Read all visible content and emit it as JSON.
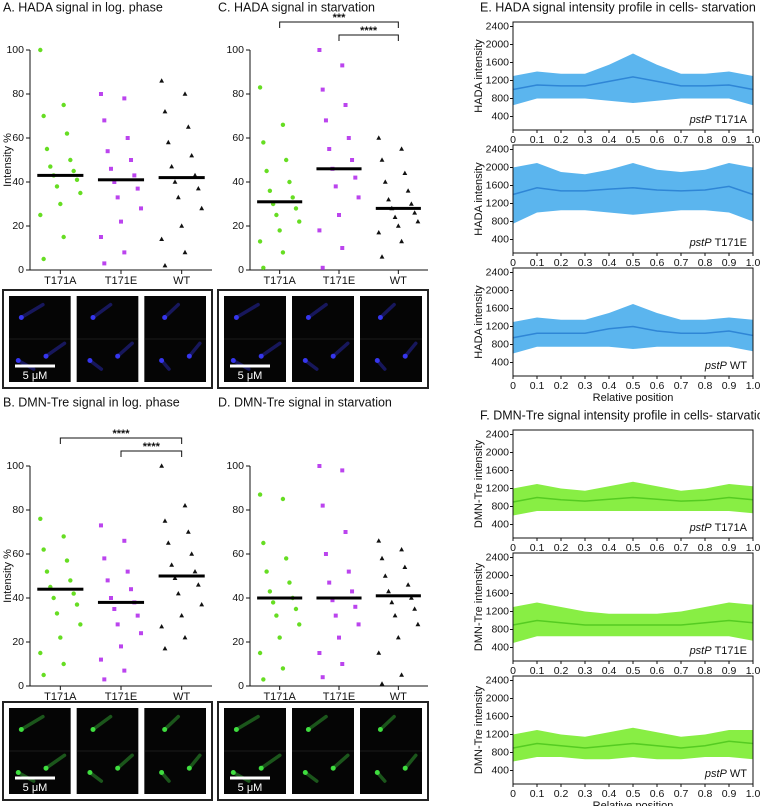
{
  "chart_data": [
    {
      "type": "dotplot",
      "title": "A. HADA signal in log. phase",
      "ylabel": "Intensity %",
      "categories": [
        "T171A",
        "T171E",
        "WT"
      ],
      "ylim": [
        0,
        100
      ],
      "yticks": [
        0,
        20,
        40,
        60,
        80,
        100
      ],
      "groups": [
        {
          "color": "#66dd22",
          "marker": "circle",
          "mean": 43,
          "values": [
            100,
            75,
            70,
            62,
            55,
            50,
            47,
            45,
            43,
            41,
            38,
            35,
            30,
            25,
            15,
            5
          ]
        },
        {
          "color": "#bb44ee",
          "marker": "square",
          "mean": 41,
          "values": [
            80,
            78,
            68,
            60,
            54,
            50,
            46,
            43,
            40,
            37,
            33,
            28,
            22,
            15,
            8,
            3
          ]
        },
        {
          "color": "#111111",
          "marker": "triangle",
          "mean": 42,
          "values": [
            86,
            80,
            72,
            65,
            58,
            52,
            47,
            43,
            40,
            37,
            33,
            28,
            20,
            14,
            8,
            2
          ]
        }
      ],
      "scale_bar_label": "5 μM"
    },
    {
      "type": "dotplot",
      "title": "C. HADA signal in starvation",
      "categories": [
        "T171A",
        "T171E",
        "WT"
      ],
      "ylim": [
        0,
        100
      ],
      "yticks": [
        0,
        20,
        40,
        60,
        80,
        100
      ],
      "groups": [
        {
          "color": "#66dd22",
          "marker": "circle",
          "mean": 31,
          "values": [
            83,
            66,
            58,
            50,
            45,
            40,
            36,
            33,
            30,
            28,
            25,
            22,
            18,
            13,
            8,
            1
          ]
        },
        {
          "color": "#bb44ee",
          "marker": "square",
          "mean": 46,
          "values": [
            100,
            93,
            82,
            75,
            68,
            60,
            55,
            50,
            46,
            42,
            38,
            33,
            25,
            18,
            10,
            1
          ]
        },
        {
          "color": "#111111",
          "marker": "triangle",
          "mean": 28,
          "values": [
            60,
            55,
            50,
            44,
            40,
            36,
            32,
            30,
            28,
            26,
            24,
            22,
            20,
            17,
            13,
            6
          ]
        }
      ],
      "brackets": [
        {
          "label": "***",
          "from": 0,
          "to": 2
        },
        {
          "label": "****",
          "from": 1,
          "to": 2
        }
      ],
      "scale_bar_label": "5 μM"
    },
    {
      "type": "dotplot",
      "title": "B. DMN-Tre signal in log. phase",
      "ylabel": "Intensity %",
      "categories": [
        "T171A",
        "T171E",
        "WT"
      ],
      "ylim": [
        0,
        100
      ],
      "yticks": [
        0,
        20,
        40,
        60,
        80,
        100
      ],
      "groups": [
        {
          "color": "#66dd22",
          "marker": "circle",
          "mean": 44,
          "values": [
            76,
            68,
            62,
            57,
            52,
            48,
            45,
            42,
            40,
            37,
            33,
            28,
            22,
            15,
            10,
            5
          ]
        },
        {
          "color": "#bb44ee",
          "marker": "square",
          "mean": 38,
          "values": [
            73,
            66,
            58,
            52,
            48,
            44,
            40,
            38,
            35,
            32,
            28,
            24,
            18,
            12,
            7,
            3
          ]
        },
        {
          "color": "#111111",
          "marker": "triangle",
          "mean": 50,
          "values": [
            100,
            82,
            75,
            70,
            65,
            60,
            55,
            52,
            49,
            46,
            42,
            37,
            32,
            27,
            22,
            17
          ]
        }
      ],
      "brackets": [
        {
          "label": "****",
          "from": 0,
          "to": 2
        },
        {
          "label": "****",
          "from": 1,
          "to": 2
        }
      ],
      "scale_bar_label": "5 μM"
    },
    {
      "type": "dotplot",
      "title": "D. DMN-Tre signal in starvation",
      "categories": [
        "T171A",
        "T171E",
        "WT"
      ],
      "ylim": [
        0,
        100
      ],
      "yticks": [
        0,
        20,
        40,
        60,
        80,
        100
      ],
      "groups": [
        {
          "color": "#66dd22",
          "marker": "circle",
          "mean": 40,
          "values": [
            87,
            85,
            65,
            58,
            52,
            47,
            43,
            40,
            38,
            35,
            32,
            28,
            22,
            15,
            8,
            3
          ]
        },
        {
          "color": "#bb44ee",
          "marker": "square",
          "mean": 40,
          "values": [
            100,
            98,
            82,
            70,
            60,
            52,
            47,
            43,
            39,
            36,
            32,
            28,
            22,
            15,
            10,
            4
          ]
        },
        {
          "color": "#111111",
          "marker": "triangle",
          "mean": 41,
          "values": [
            66,
            62,
            58,
            54,
            50,
            46,
            43,
            40,
            38,
            35,
            32,
            28,
            22,
            15,
            5,
            1
          ]
        }
      ],
      "scale_bar_label": "5 μM"
    },
    {
      "type": "band",
      "title": "E. HADA signal intensity profile in cells- starvation",
      "ylabel": "HADA intensity",
      "annotation": {
        "gene": "pstP",
        "strain": "T171A"
      },
      "color": "#2f86d6",
      "band_color": "#5bb5ee",
      "x": [
        0,
        0.1,
        0.2,
        0.3,
        0.4,
        0.5,
        0.6,
        0.7,
        0.8,
        0.9,
        1
      ],
      "mean": [
        1000,
        1100,
        1080,
        1080,
        1180,
        1280,
        1180,
        1080,
        1080,
        1100,
        1000
      ],
      "lower": [
        650,
        800,
        800,
        800,
        750,
        700,
        750,
        800,
        800,
        800,
        650
      ],
      "upper": [
        1300,
        1400,
        1350,
        1350,
        1550,
        1800,
        1550,
        1350,
        1350,
        1400,
        1300
      ],
      "xlim": [
        0,
        1
      ],
      "xticks": [
        0,
        0.1,
        0.2,
        0.3,
        0.4,
        0.5,
        0.6,
        0.7,
        0.8,
        0.9,
        {
          "value": 1,
          "label": "1.0"
        }
      ],
      "ylim": [
        100,
        2500
      ],
      "yticks": [
        400,
        800,
        1200,
        1600,
        2000,
        2400
      ]
    },
    {
      "type": "band",
      "ylabel": "HADA intensity",
      "annotation": {
        "gene": "pstP",
        "strain": "T171E"
      },
      "color": "#2f86d6",
      "band_color": "#5bb5ee",
      "x": [
        0,
        0.1,
        0.2,
        0.3,
        0.4,
        0.5,
        0.6,
        0.7,
        0.8,
        0.9,
        1
      ],
      "mean": [
        1400,
        1550,
        1480,
        1480,
        1520,
        1550,
        1500,
        1480,
        1500,
        1580,
        1400
      ],
      "lower": [
        750,
        1000,
        1050,
        1050,
        1000,
        950,
        1000,
        1050,
        1050,
        1000,
        800
      ],
      "upper": [
        2000,
        2100,
        1900,
        1850,
        1950,
        2100,
        1950,
        1900,
        1950,
        2100,
        2000
      ],
      "xlim": [
        0,
        1
      ],
      "xticks": [
        0,
        0.1,
        0.2,
        0.3,
        0.4,
        0.5,
        0.6,
        0.7,
        0.8,
        0.9,
        {
          "value": 1,
          "label": "1.0"
        }
      ],
      "ylim": [
        100,
        2500
      ],
      "yticks": [
        400,
        800,
        1200,
        1600,
        2000,
        2400
      ]
    },
    {
      "type": "band",
      "ylabel": "HADA intensity",
      "xlabel": "Relative position",
      "annotation": {
        "gene": "pstP",
        "strain": "WT"
      },
      "color": "#2f86d6",
      "band_color": "#5bb5ee",
      "x": [
        0,
        0.1,
        0.2,
        0.3,
        0.4,
        0.5,
        0.6,
        0.7,
        0.8,
        0.9,
        1
      ],
      "mean": [
        950,
        1050,
        1050,
        1050,
        1150,
        1200,
        1100,
        1050,
        1050,
        1100,
        1000
      ],
      "lower": [
        600,
        750,
        750,
        750,
        750,
        700,
        750,
        750,
        750,
        750,
        650
      ],
      "upper": [
        1300,
        1400,
        1350,
        1350,
        1500,
        1700,
        1500,
        1350,
        1350,
        1400,
        1350
      ],
      "xlim": [
        0,
        1
      ],
      "xticks": [
        0,
        0.1,
        0.2,
        0.3,
        0.4,
        0.5,
        0.6,
        0.7,
        0.8,
        0.9,
        {
          "value": 1,
          "label": "1.0"
        }
      ],
      "ylim": [
        100,
        2500
      ],
      "yticks": [
        400,
        800,
        1200,
        1600,
        2000,
        2400
      ]
    },
    {
      "type": "band",
      "title": "F. DMN-Tre signal intensity profile in cells- starvation",
      "ylabel": "DMN-Tre intensity",
      "annotation": {
        "gene": "pstP",
        "strain": "T171A"
      },
      "color": "#55cc22",
      "band_color": "#88ee44",
      "x": [
        0,
        0.1,
        0.2,
        0.3,
        0.4,
        0.5,
        0.6,
        0.7,
        0.8,
        0.9,
        1
      ],
      "mean": [
        900,
        1000,
        950,
        920,
        960,
        1000,
        960,
        920,
        940,
        1000,
        950
      ],
      "lower": [
        600,
        700,
        700,
        700,
        700,
        700,
        700,
        700,
        700,
        700,
        650
      ],
      "upper": [
        1200,
        1300,
        1200,
        1150,
        1250,
        1350,
        1250,
        1150,
        1200,
        1300,
        1250
      ],
      "xlim": [
        0,
        1
      ],
      "xticks": [
        0,
        0.1,
        0.2,
        0.3,
        0.4,
        0.5,
        0.6,
        0.7,
        0.8,
        0.9,
        {
          "value": 1,
          "label": "1.0"
        }
      ],
      "ylim": [
        100,
        2500
      ],
      "yticks": [
        400,
        800,
        1200,
        1600,
        2000,
        2400
      ]
    },
    {
      "type": "band",
      "ylabel": "DMN-Tre intensity",
      "annotation": {
        "gene": "pstP",
        "strain": "T171E"
      },
      "color": "#55cc22",
      "band_color": "#88ee44",
      "x": [
        0,
        0.1,
        0.2,
        0.3,
        0.4,
        0.5,
        0.6,
        0.7,
        0.8,
        0.9,
        1
      ],
      "mean": [
        900,
        1000,
        950,
        900,
        900,
        900,
        900,
        900,
        950,
        1000,
        950
      ],
      "lower": [
        500,
        650,
        650,
        650,
        650,
        650,
        650,
        650,
        650,
        650,
        550
      ],
      "upper": [
        1300,
        1400,
        1300,
        1200,
        1150,
        1150,
        1150,
        1200,
        1300,
        1400,
        1350
      ],
      "xlim": [
        0,
        1
      ],
      "xticks": [
        0,
        0.1,
        0.2,
        0.3,
        0.4,
        0.5,
        0.6,
        0.7,
        0.8,
        0.9,
        {
          "value": 1,
          "label": "1.0"
        }
      ],
      "ylim": [
        100,
        2500
      ],
      "yticks": [
        400,
        800,
        1200,
        1600,
        2000,
        2400
      ]
    },
    {
      "type": "band",
      "ylabel": "DMN-Tre intensity",
      "xlabel": "Relative position",
      "annotation": {
        "gene": "pstP",
        "strain": "WT"
      },
      "color": "#55cc22",
      "band_color": "#88ee44",
      "x": [
        0,
        0.1,
        0.2,
        0.3,
        0.4,
        0.5,
        0.6,
        0.7,
        0.8,
        0.9,
        1
      ],
      "mean": [
        900,
        1000,
        950,
        900,
        950,
        1000,
        950,
        900,
        950,
        1050,
        1000
      ],
      "lower": [
        600,
        700,
        700,
        650,
        650,
        700,
        650,
        650,
        700,
        700,
        650
      ],
      "upper": [
        1200,
        1300,
        1200,
        1150,
        1250,
        1350,
        1250,
        1150,
        1200,
        1300,
        1300
      ],
      "xlim": [
        0,
        1
      ],
      "xticks": [
        0,
        0.1,
        0.2,
        0.3,
        0.4,
        0.5,
        0.6,
        0.7,
        0.8,
        0.9,
        {
          "value": 1,
          "label": "1.0"
        }
      ],
      "ylim": [
        100,
        2500
      ],
      "yticks": [
        400,
        800,
        1200,
        1600,
        2000,
        2400
      ]
    }
  ]
}
